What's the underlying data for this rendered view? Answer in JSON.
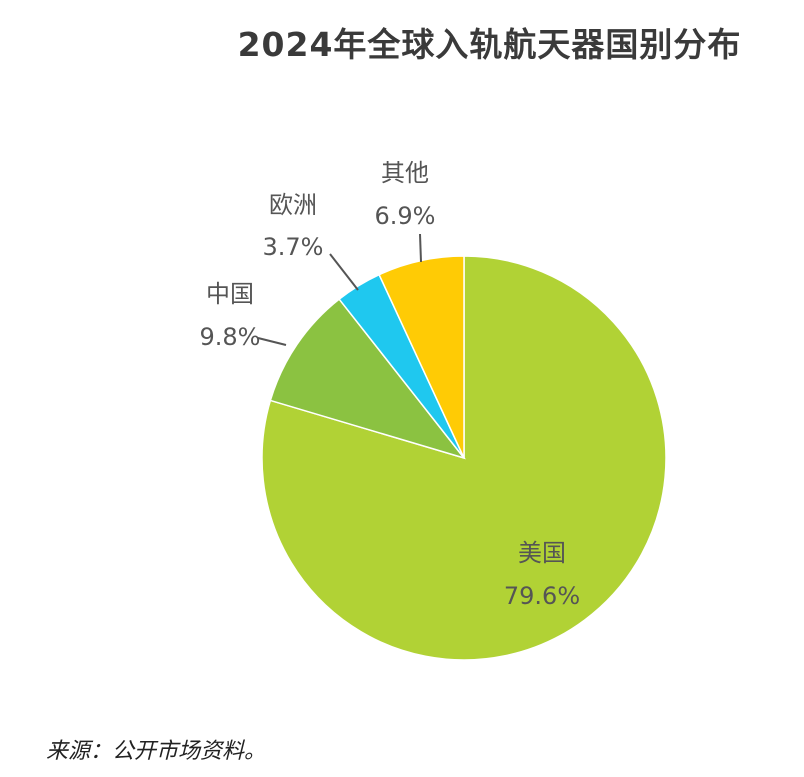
{
  "chart_data": {
    "type": "pie",
    "title": "2024年全球入轨航天器国别分布",
    "slices": [
      {
        "label": "美国",
        "value": 79.6,
        "display": "79.6%",
        "color": "#b1d235"
      },
      {
        "label": "中国",
        "value": 9.8,
        "display": "9.8%",
        "color": "#8bc241"
      },
      {
        "label": "欧洲",
        "value": 3.7,
        "display": "3.7%",
        "color": "#1fc8ef"
      },
      {
        "label": "其他",
        "value": 6.9,
        "display": "6.9%",
        "color": "#ffcb05"
      }
    ]
  },
  "source": "来源：公开市场资料。"
}
